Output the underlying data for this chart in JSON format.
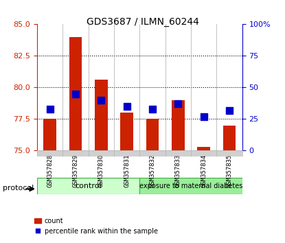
{
  "title": "GDS3687 / ILMN_60244",
  "samples": [
    "GSM357828",
    "GSM357829",
    "GSM357830",
    "GSM357831",
    "GSM357832",
    "GSM357833",
    "GSM357834",
    "GSM357835"
  ],
  "red_values": [
    77.5,
    84.0,
    80.6,
    78.0,
    77.5,
    79.0,
    75.3,
    77.0
  ],
  "blue_values": [
    33,
    45,
    40,
    35,
    33,
    37,
    27,
    32
  ],
  "ylim_left": [
    75,
    85
  ],
  "ylim_right": [
    0,
    100
  ],
  "yticks_left": [
    75,
    77.5,
    80,
    82.5,
    85
  ],
  "yticks_right": [
    0,
    25,
    50,
    75,
    100
  ],
  "ytick_right_labels": [
    "0",
    "25",
    "50",
    "75",
    "100%"
  ],
  "left_color": "#cc2200",
  "right_color": "#0000cc",
  "bar_color": "#cc2200",
  "dot_color": "#0000cc",
  "baseline": 75,
  "group_boundary": 3.5,
  "group1_label": "control",
  "group2_label": "exposure to maternal diabetes",
  "group1_color": "#ccffcc",
  "group2_color": "#99ee99",
  "protocol_label": "protocol",
  "legend_items": [
    "count",
    "percentile rank within the sample"
  ],
  "legend_colors": [
    "#cc2200",
    "#0000cc"
  ],
  "bar_width": 0.5,
  "blue_marker_size": 7
}
